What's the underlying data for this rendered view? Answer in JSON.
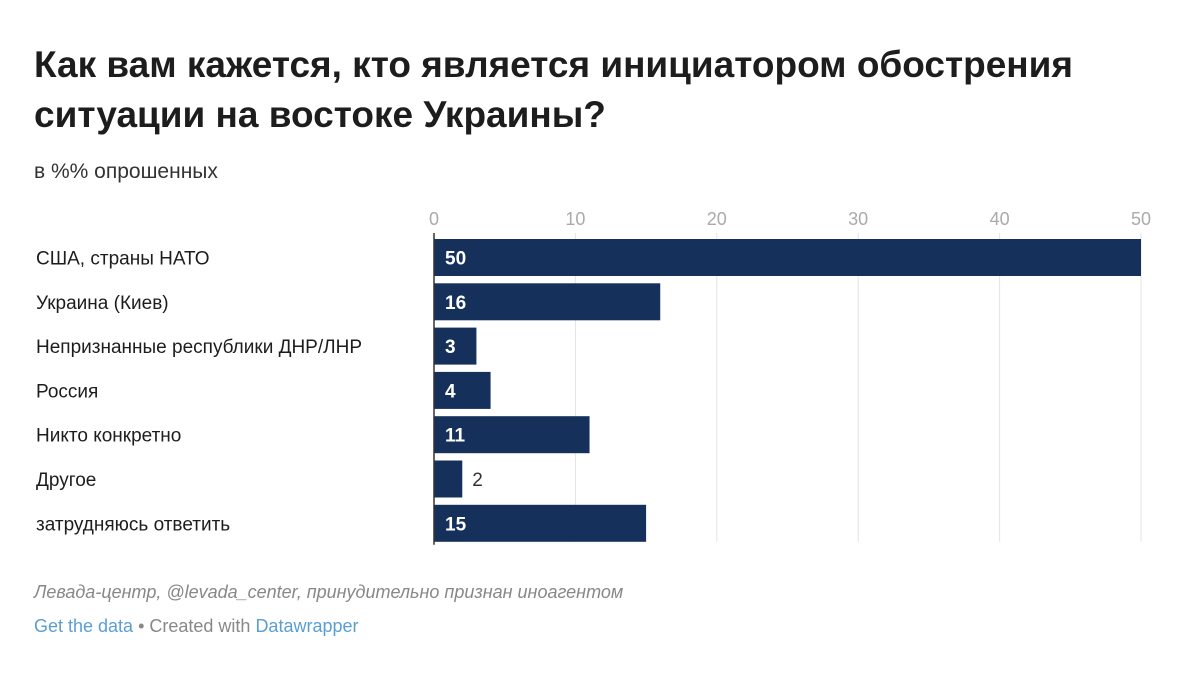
{
  "title": "Как вам кажется, кто является инициатором обострения ситуации на востоке Украины?",
  "subtitle": "в %% опрошенных",
  "notes": "Левада-центр, @levada_center, принудительно признан иноагентом",
  "footer": {
    "get_data": "Get the data",
    "separator": " • Created with ",
    "tool": "Datawrapper"
  },
  "colors": {
    "bar": "#15305a",
    "grid": "#e3e3e3",
    "axis": "#333333",
    "tick": "#aaaaaa"
  },
  "chart_data": {
    "type": "bar",
    "orientation": "horizontal",
    "categories": [
      "США, страны НАТО",
      "Украина (Киев)",
      "Непризнанные республики ДНР/ЛНР",
      "Россия",
      "Никто конкретно",
      "Другое",
      "затрудняюсь ответить"
    ],
    "values": [
      50,
      16,
      3,
      4,
      11,
      2,
      15
    ],
    "xlim": [
      0,
      50
    ],
    "xticks": [
      0,
      10,
      20,
      30,
      40,
      50
    ],
    "grid": true
  }
}
